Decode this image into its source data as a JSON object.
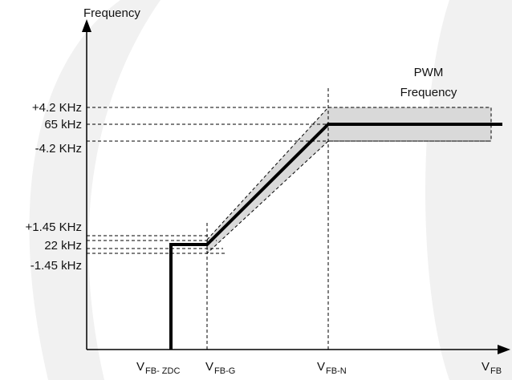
{
  "axes": {
    "y_label": "Frequency",
    "x_label": {
      "main": "V",
      "sub": "FB"
    }
  },
  "y_ticks": {
    "plus_4_2": "+4.2 KHz",
    "f_65": "65 kHz",
    "minus_4_2": "-4.2 KHz",
    "plus_1_45": "+1.45 KHz",
    "f_22": "22  kHz",
    "minus_1_45": "-1.45 kHz"
  },
  "x_ticks": {
    "zdc": {
      "main": "V",
      "sub": "FB- ZDC"
    },
    "g": {
      "main": "V",
      "sub": "FB-G"
    },
    "n": {
      "main": "V",
      "sub": "FB-N"
    }
  },
  "annotation": {
    "line1": "PWM",
    "line2": "Frequency"
  },
  "colors": {
    "line": "#000000",
    "band_fill": "#d9d9d9",
    "background_shape": "#f1f1f1"
  }
}
